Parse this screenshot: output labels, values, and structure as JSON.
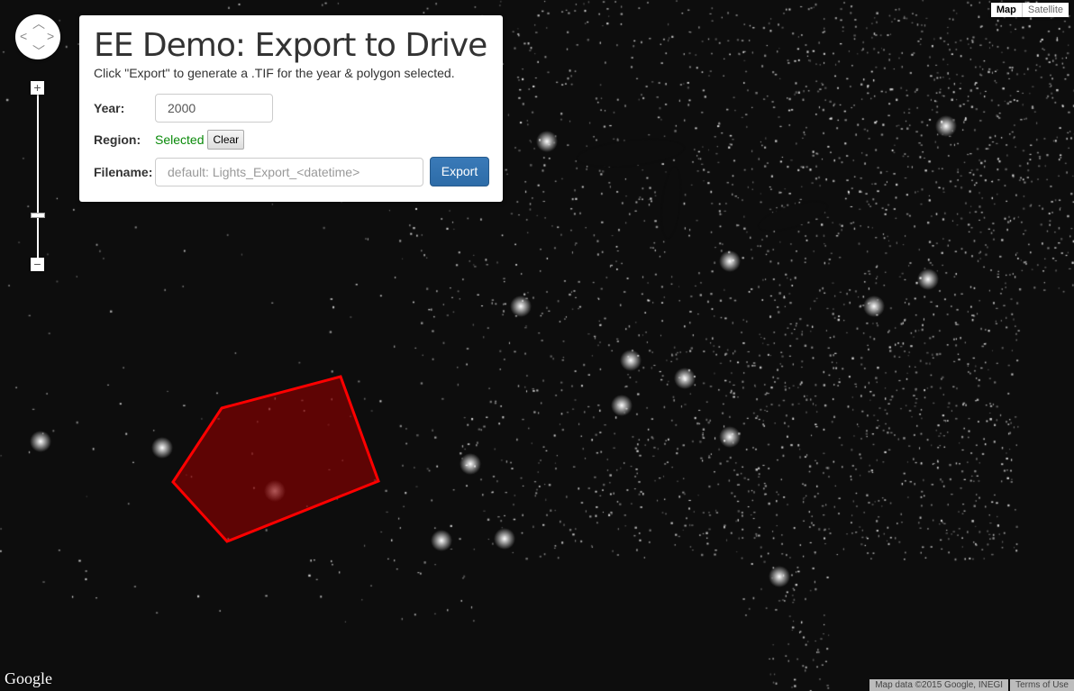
{
  "panel": {
    "title": "EE Demo: Export to Drive",
    "subtitle": "Click \"Export\" to generate a .TIF for the year & polygon selected.",
    "year_label": "Year:",
    "year_value": "2000",
    "region_label": "Region:",
    "region_status": "Selected",
    "region_status_color": "#0a8a0a",
    "clear_label": "Clear",
    "filename_label": "Filename:",
    "filename_placeholder": "default: Lights_Export_<datetime>",
    "export_label": "Export",
    "export_color": "#2d6ca8"
  },
  "map_type": {
    "options": [
      "Map",
      "Satellite"
    ],
    "selected": "Map"
  },
  "controls": {
    "pan_icon": "pan-arrows-icon",
    "zoom_in": "+",
    "zoom_out": "−"
  },
  "map": {
    "layer": "night lights",
    "polygon_color": "#ff0000",
    "polygon_fill": "#8b0000"
  },
  "footer": {
    "logo": "Google",
    "attribution": "Map data ©2015 Google, INEGI",
    "terms": "Terms of Use"
  }
}
